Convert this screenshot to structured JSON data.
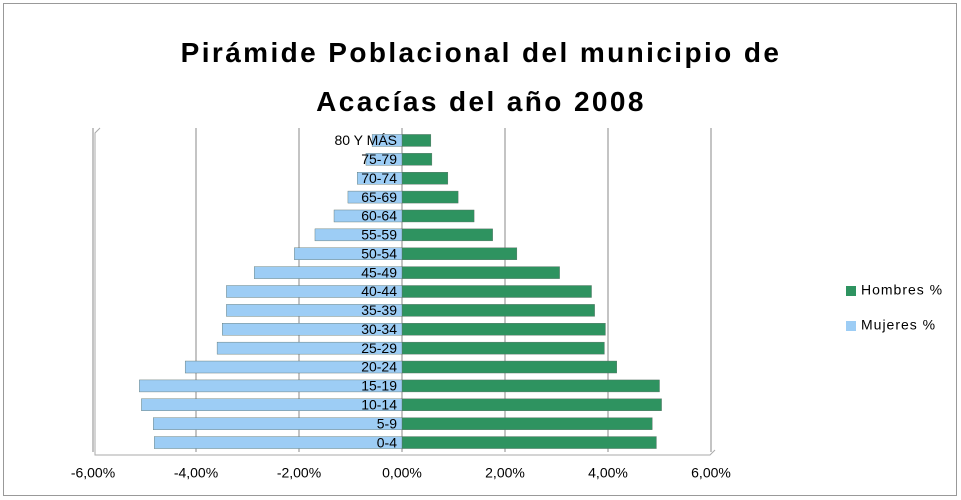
{
  "chart_data": {
    "type": "bar",
    "orientation": "horizontal",
    "stacking": "diverging",
    "title": "Pirámide Poblacional del municipio de Acacías del año 2008",
    "categories": [
      "0-4",
      "5-9",
      "10-14",
      "15-19",
      "20-24",
      "25-29",
      "30-34",
      "35-39",
      "40-44",
      "45-49",
      "50-54",
      "55-59",
      "60-64",
      "65-69",
      "70-74",
      "75-79",
      "80 Y MÁS"
    ],
    "series": [
      {
        "name": "Hombres %",
        "color": "#2e9360",
        "values": [
          4.94,
          4.86,
          5.04,
          5.0,
          4.17,
          3.93,
          3.95,
          3.74,
          3.68,
          3.06,
          2.23,
          1.76,
          1.4,
          1.09,
          0.89,
          0.58,
          0.56
        ]
      },
      {
        "name": "Mujeres %",
        "color": "#9dcdf5",
        "values": [
          -4.81,
          -4.83,
          -5.06,
          -5.1,
          -4.21,
          -3.59,
          -3.49,
          -3.41,
          -3.41,
          -2.87,
          -2.09,
          -1.69,
          -1.32,
          -1.05,
          -0.87,
          -0.7,
          -0.58
        ]
      }
    ],
    "xlim": [
      -6,
      6
    ],
    "xticks": [
      {
        "value": -6,
        "label": "-6,00%"
      },
      {
        "value": -4,
        "label": "-4,00%"
      },
      {
        "value": -2,
        "label": "-2,00%"
      },
      {
        "value": 0,
        "label": "0,00%"
      },
      {
        "value": 2,
        "label": "2,00%"
      },
      {
        "value": 4,
        "label": "4,00%"
      },
      {
        "value": 6,
        "label": "6,00%"
      }
    ],
    "grid": true,
    "legend": "right"
  }
}
